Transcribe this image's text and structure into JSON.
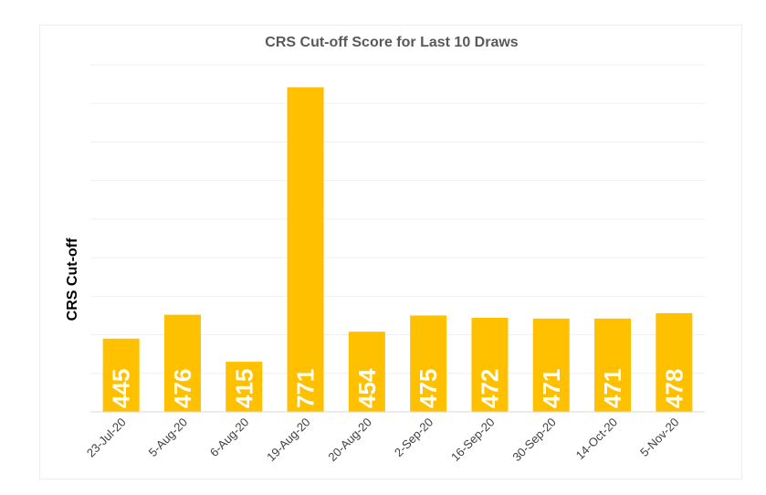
{
  "chart_data": {
    "type": "bar",
    "title": "CRS Cut-off Score for Last 10 Draws",
    "xlabel": "",
    "ylabel": "CRS Cut-off",
    "categories": [
      "23-Jul-20",
      "5-Aug-20",
      "6-Aug-20",
      "19-Aug-20",
      "20-Aug-20",
      "2-Sep-20",
      "16-Sep-20",
      "30-Sep-20",
      "14-Oct-20",
      "5-Nov-20"
    ],
    "values": [
      445,
      476,
      415,
      771,
      454,
      475,
      472,
      471,
      471,
      478
    ],
    "ylim": [
      350,
      800
    ],
    "grid": true,
    "legend": "none",
    "bar_color": "#FFC000",
    "label_color": "#FFFFFF"
  }
}
